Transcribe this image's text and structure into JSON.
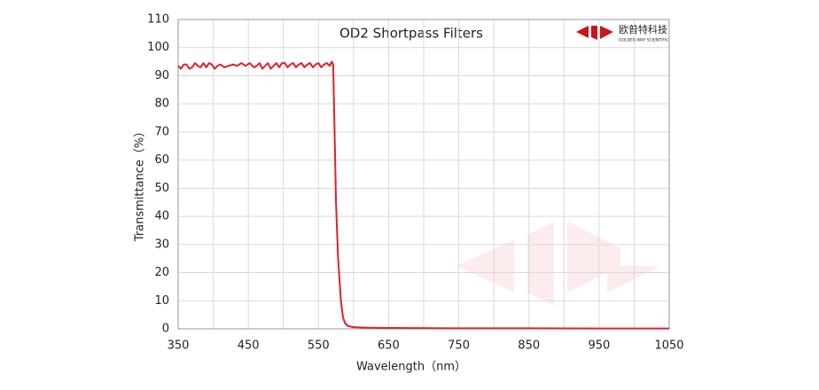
{
  "chart_data": {
    "type": "line",
    "title": "OD2  Shortpass Filters",
    "x_label": "Wavelength（nm）",
    "y_label": "Transmittance（%）",
    "logo": {
      "name": "欧普特科技",
      "subtitle": "GOLDEN WAY SCIENTIFIC"
    },
    "color": "#e0202c",
    "grid": true,
    "xlim": [
      350,
      1050
    ],
    "xticks": [
      350,
      450,
      550,
      650,
      750,
      850,
      950,
      1050
    ],
    "x_minor_grid": [
      400,
      500,
      600,
      700,
      800,
      900,
      1000
    ],
    "ylim": [
      0,
      110
    ],
    "yticks": [
      0,
      10,
      20,
      30,
      40,
      50,
      60,
      70,
      80,
      90,
      100,
      110
    ],
    "x": [
      350,
      354,
      358,
      362,
      366,
      370,
      374,
      378,
      382,
      386,
      390,
      394,
      398,
      402,
      406,
      410,
      416,
      422,
      428,
      434,
      440,
      446,
      452,
      458,
      462,
      466,
      470,
      474,
      478,
      482,
      486,
      490,
      494,
      498,
      502,
      506,
      510,
      514,
      518,
      522,
      526,
      530,
      534,
      538,
      542,
      546,
      550,
      554,
      558,
      562,
      566,
      569,
      571,
      573,
      575,
      578,
      582,
      585,
      588,
      592,
      600,
      620,
      650,
      750,
      850,
      950,
      1050
    ],
    "values": [
      93.5,
      92.5,
      94,
      94,
      92.5,
      93,
      94.5,
      93.5,
      93,
      94.5,
      93,
      94.5,
      94,
      92.5,
      93.5,
      94,
      93,
      93.5,
      94,
      93.5,
      94.5,
      93.5,
      94.5,
      93,
      93.5,
      94.5,
      92.5,
      93.5,
      94.5,
      92.5,
      93.5,
      94.5,
      93,
      94.5,
      94.5,
      93,
      94,
      94.5,
      93,
      94,
      94.5,
      93,
      94,
      94.5,
      93,
      94,
      94.5,
      93,
      94,
      94.5,
      93.5,
      95,
      94,
      70,
      45,
      25,
      10,
      4,
      2,
      1,
      0.6,
      0.4,
      0.3,
      0.2,
      0.2,
      0.1,
      0.1
    ]
  }
}
